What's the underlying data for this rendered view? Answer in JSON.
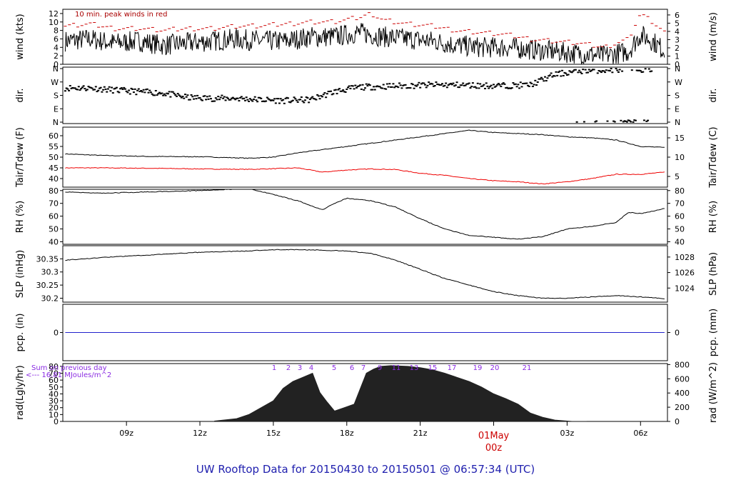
{
  "chart_data": [
    {
      "type": "line",
      "panel": "wind",
      "ylabel_left": "wind (kts)",
      "ylabel_right": "wind (m/s)",
      "ylim": [
        0,
        13
      ],
      "yticks_left": [
        0,
        2,
        4,
        6,
        8,
        10,
        12
      ],
      "yticks_right": [
        0,
        1,
        2,
        3,
        4,
        5,
        6
      ],
      "annotation": "10 min. peak winds in red",
      "series": [
        {
          "name": "wind",
          "color": "#000000",
          "x": [
            6.5,
            7.5,
            8.5,
            9.5,
            10.5,
            11.5,
            12.5,
            13.5,
            14.5,
            15.5,
            16.5,
            17.5,
            18.5,
            19.0,
            19.5,
            20.5,
            21.5,
            22.5,
            23.5,
            24.5,
            25.5,
            26.5,
            27.5,
            28.5,
            29.5,
            30.0,
            30.5,
            31.0
          ],
          "y": [
            5.5,
            6.0,
            5.0,
            5.5,
            4.5,
            5.0,
            5.5,
            6.0,
            5.5,
            5.5,
            6.5,
            6.5,
            7.5,
            7.0,
            6.5,
            6.0,
            5.5,
            4.5,
            4.0,
            4.0,
            3.5,
            3.0,
            2.5,
            2.0,
            3.0,
            7.0,
            5.5,
            3.0
          ]
        },
        {
          "name": "peak",
          "color": "#cc0000",
          "x": [
            6.5,
            7.5,
            8.5,
            9.5,
            10.5,
            11.5,
            12.5,
            13.5,
            14.5,
            15.5,
            16.5,
            17.5,
            18.5,
            19.0,
            19.5,
            20.5,
            21.5,
            22.5,
            23.5,
            24.5,
            25.5,
            26.5,
            27.5,
            28.5,
            29.5,
            30.0,
            30.5,
            31.0
          ],
          "y": [
            9.0,
            9.5,
            8.5,
            8.5,
            8.0,
            8.5,
            8.5,
            9.0,
            9.0,
            9.5,
            10.0,
            10.0,
            11.0,
            12.0,
            10.5,
            9.5,
            9.0,
            8.0,
            7.5,
            7.0,
            6.0,
            5.5,
            5.0,
            4.0,
            6.0,
            12.0,
            10.0,
            7.5
          ]
        }
      ]
    },
    {
      "type": "scatter",
      "panel": "dir",
      "ylabel_left": "dir.",
      "ylabel_right": "dir.",
      "yticks_left": [
        "N",
        "E",
        "S",
        "W",
        "N"
      ],
      "yticks_right": [
        "N",
        "E",
        "S",
        "W",
        "N"
      ],
      "ylim": [
        0,
        360
      ],
      "series": [
        {
          "name": "dir",
          "color": "#000000",
          "x": [
            6.5,
            7.5,
            8.5,
            9.5,
            10.5,
            11.5,
            12.5,
            13.5,
            14.5,
            15.5,
            16.5,
            17.5,
            18.5,
            19.5,
            20.5,
            21.5,
            22.5,
            23.5,
            24.5,
            25.5,
            26.5,
            27.5,
            28.5,
            29.5,
            30.5
          ],
          "y": [
            230,
            230,
            215,
            205,
            195,
            165,
            160,
            160,
            150,
            145,
            150,
            205,
            235,
            240,
            245,
            250,
            250,
            245,
            245,
            250,
            320,
            345,
            350,
            355,
            355
          ]
        }
      ]
    },
    {
      "type": "line",
      "panel": "temp",
      "ylabel_left": "Tair/Tdew (F)",
      "ylabel_right": "Tair/Tdew (C)",
      "ylim": [
        36,
        64
      ],
      "yticks_left": [
        40,
        45,
        50,
        55,
        60
      ],
      "yticks_right": [
        5,
        10,
        15
      ],
      "series": [
        {
          "name": "Tair",
          "color": "#000000",
          "x": [
            6.5,
            8,
            10,
            12,
            14,
            15,
            16,
            17,
            18,
            19,
            20,
            21,
            22,
            23,
            24,
            25,
            26,
            27,
            28,
            29,
            30,
            31
          ],
          "y": [
            51.5,
            50.8,
            50.3,
            50.2,
            49.5,
            50.0,
            52.0,
            53.5,
            55.0,
            56.5,
            58.0,
            59.5,
            61.0,
            62.5,
            61.5,
            61.0,
            60.5,
            59.5,
            59.0,
            58.0,
            55.0,
            54.5
          ]
        },
        {
          "name": "Tdew",
          "color": "#ee0000",
          "x": [
            6.5,
            8,
            10,
            12,
            14,
            15,
            16,
            17,
            18,
            19,
            20,
            21,
            22,
            23,
            24,
            25,
            26,
            27,
            28,
            29,
            30,
            31
          ],
          "y": [
            45.0,
            45.0,
            44.8,
            44.5,
            44.3,
            44.6,
            45.0,
            43.0,
            44.0,
            44.5,
            44.2,
            42.5,
            41.5,
            40.0,
            39.0,
            38.5,
            37.5,
            38.5,
            40.0,
            42.0,
            42.0,
            43.0
          ]
        }
      ]
    },
    {
      "type": "line",
      "panel": "rh",
      "ylabel_left": "RH (%)",
      "ylabel_right": "RH (%)",
      "ylim": [
        38,
        81
      ],
      "yticks_left": [
        40,
        50,
        60,
        70,
        80
      ],
      "yticks_right": [
        40,
        50,
        60,
        70,
        80
      ],
      "series": [
        {
          "name": "RH",
          "color": "#000000",
          "x": [
            6.5,
            8,
            10,
            12,
            14,
            15,
            16,
            17,
            17.5,
            18,
            19,
            20,
            21,
            22,
            23,
            24,
            25,
            26,
            27,
            28,
            29,
            29.5,
            30,
            31
          ],
          "y": [
            79.0,
            78.0,
            79.0,
            80.0,
            81.5,
            77.0,
            72.0,
            65.0,
            70.0,
            74.0,
            72.0,
            67.0,
            58.0,
            50.0,
            45.0,
            43.5,
            42.0,
            44.0,
            50.0,
            52.0,
            55.0,
            63.0,
            62.0,
            66.0
          ]
        }
      ]
    },
    {
      "type": "line",
      "panel": "slp",
      "ylabel_left": "SLP (inHg)",
      "ylabel_right": "SLP (hPa)",
      "ylim": [
        30.185,
        30.4
      ],
      "yticks_left": [
        30.2,
        30.25,
        30.3,
        30.35
      ],
      "yticks_right": [
        1024,
        1026,
        1028
      ],
      "series": [
        {
          "name": "SLP",
          "color": "#000000",
          "x": [
            6.5,
            8,
            10,
            12,
            14,
            15,
            16,
            17,
            18,
            19,
            20,
            21,
            22,
            23,
            24,
            25,
            26,
            27,
            28,
            29,
            30,
            31
          ],
          "y": [
            30.345,
            30.355,
            30.365,
            30.375,
            30.38,
            30.385,
            30.385,
            30.383,
            30.38,
            30.37,
            30.345,
            30.31,
            30.275,
            30.25,
            30.225,
            30.21,
            30.2,
            30.2,
            30.205,
            30.21,
            30.205,
            30.198
          ]
        }
      ]
    },
    {
      "type": "line",
      "panel": "pcp",
      "ylabel_left": "pcp. (in)",
      "ylabel_right": "pcp. (mm)",
      "ylim": [
        -1,
        1
      ],
      "yticks_left": [
        0
      ],
      "yticks_right": [
        0
      ],
      "series": [
        {
          "name": "pcp",
          "color": "#2222cc",
          "x": [
            6.5,
            31
          ],
          "y": [
            0,
            0
          ]
        }
      ]
    },
    {
      "type": "area",
      "panel": "rad",
      "ylabel_left": "rad(Lgly/hr)",
      "ylabel_right": "rad (W/m^2)",
      "ylim": [
        0,
        84
      ],
      "yticks_left": [
        0,
        10,
        20,
        30,
        40,
        50,
        60,
        70,
        80
      ],
      "yticks_right": [
        0,
        200,
        400,
        600,
        800
      ],
      "annotation_lines": [
        "Sum on previous day",
        "<--- 16.81 MJoules/m^2"
      ],
      "hour_labels": [
        "1",
        "2",
        "3",
        "4",
        "5",
        "6",
        "7",
        "9",
        "11",
        "13",
        "15",
        "17",
        "19",
        "20",
        "21"
      ],
      "series": [
        {
          "name": "rad",
          "color": "#222222",
          "x": [
            12.6,
            13.5,
            14.0,
            14.6,
            15.0,
            15.4,
            15.8,
            16.2,
            16.6,
            16.9,
            17.2,
            17.5,
            17.9,
            18.3,
            18.8,
            19.1,
            19.4,
            19.8,
            20.5,
            21.0,
            21.5,
            22.0,
            22.5,
            23.0,
            23.5,
            24.0,
            24.5,
            25.0,
            25.5,
            26.0,
            26.5,
            27.2
          ],
          "y": [
            0.5,
            4,
            10,
            22,
            30,
            48,
            58,
            64,
            70,
            42,
            28,
            15,
            20,
            25,
            70,
            76,
            80,
            81,
            80,
            78,
            75,
            70,
            64,
            58,
            50,
            40,
            33,
            25,
            12,
            6,
            2,
            0
          ]
        }
      ]
    }
  ],
  "x_axis": {
    "ticks": [
      {
        "x": 9,
        "label": "09z"
      },
      {
        "x": 12,
        "label": "12z"
      },
      {
        "x": 15,
        "label": "15z"
      },
      {
        "x": 18,
        "label": "18z"
      },
      {
        "x": 21,
        "label": "21z"
      },
      {
        "x": 24,
        "label": "00z"
      },
      {
        "x": 27,
        "label": "03z"
      },
      {
        "x": 30,
        "label": "06z"
      }
    ],
    "date_marker": "01May",
    "date_marker_hour": "00z",
    "date_color": "#cc0000"
  },
  "footer": {
    "title": "UW Rooftop Data for 20150430  to  20150501 @ 06:57:34  (UTC)"
  }
}
